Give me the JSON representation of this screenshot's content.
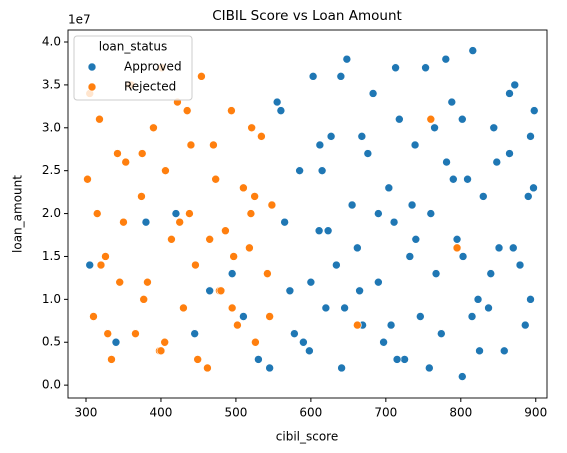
{
  "chart_data": {
    "type": "scatter",
    "title": "CIBIL Score vs Loan Amount",
    "x_label": "cibil_score",
    "y_label": "loan_amount",
    "y_offset_label": "1e7",
    "legend_title": "loan_status",
    "legend_position": "upper left",
    "xlim": [
      276,
      915
    ],
    "ylim": [
      -0.15,
      4.14
    ],
    "xticks": [
      300,
      400,
      500,
      600,
      700,
      800,
      900
    ],
    "yticks": [
      {
        "value": 0,
        "label": "0.0"
      },
      {
        "value": 0.5,
        "label": "0.5"
      },
      {
        "value": 1,
        "label": "1.0"
      },
      {
        "value": 1.5,
        "label": "1.5"
      },
      {
        "value": 2,
        "label": "2.0"
      },
      {
        "value": 2.5,
        "label": "2.5"
      },
      {
        "value": 3,
        "label": "3.0"
      },
      {
        "value": 3.5,
        "label": "3.5"
      },
      {
        "value": 4,
        "label": "4.0"
      }
    ],
    "grid": false,
    "series": [
      {
        "name": "Approved",
        "color": "#1f77b4",
        "x": [
          560,
          572,
          585,
          598,
          603,
          611,
          620,
          627,
          634,
          641,
          648,
          655,
          662,
          669,
          676,
          683,
          690,
          697,
          704,
          711,
          718,
          725,
          732,
          739,
          746,
          753,
          760,
          767,
          774,
          781,
          788,
          795,
          802,
          809,
          816,
          823,
          830,
          837,
          844,
          851,
          858,
          865,
          872,
          879,
          886,
          893,
          898,
          565,
          590,
          615,
          640,
          665,
          690,
          715,
          740,
          765,
          790,
          815,
          840,
          865,
          890,
          578,
          623,
          668,
          713,
          758,
          803,
          848,
          893,
          555,
          600,
          645,
          735,
          780,
          825,
          870,
          612,
          707,
          802,
          897,
          305,
          340,
          420,
          465,
          510,
          530,
          380,
          445,
          495,
          545
        ],
        "values": [
          3.2,
          1.1,
          2.5,
          0.4,
          3.6,
          1.8,
          0.9,
          2.9,
          1.4,
          0.2,
          3.8,
          2.1,
          1.6,
          0.7,
          2.7,
          3.4,
          1.2,
          0.5,
          2.3,
          1.9,
          3.1,
          0.3,
          1.5,
          2.8,
          0.8,
          3.7,
          2.0,
          1.3,
          0.6,
          2.6,
          3.3,
          1.7,
          0.1,
          2.4,
          3.9,
          1.0,
          2.2,
          0.9,
          3.0,
          1.6,
          0.4,
          2.7,
          3.5,
          1.4,
          0.7,
          2.9,
          3.2,
          1.9,
          0.5,
          2.5,
          3.6,
          1.1,
          2.0,
          0.3,
          1.7,
          3.0,
          2.4,
          0.8,
          1.3,
          3.4,
          2.2,
          0.6,
          1.8,
          2.9,
          3.7,
          0.2,
          1.5,
          2.6,
          1.0,
          3.3,
          1.2,
          0.9,
          2.1,
          3.8,
          0.4,
          1.6,
          2.8,
          0.7,
          3.1,
          2.3,
          1.4,
          0.5,
          2.0,
          1.1,
          0.8,
          0.3,
          1.9,
          0.6,
          1.3,
          0.2
        ]
      },
      {
        "name": "Rejected",
        "color": "#ff7f0e",
        "x": [
          302,
          310,
          318,
          326,
          334,
          342,
          350,
          358,
          366,
          374,
          382,
          390,
          398,
          406,
          414,
          422,
          430,
          438,
          446,
          454,
          462,
          470,
          478,
          486,
          494,
          502,
          510,
          518,
          526,
          534,
          542,
          548,
          305,
          329,
          353,
          377,
          401,
          425,
          449,
          473,
          497,
          521,
          545,
          315,
          345,
          375,
          405,
          435,
          465,
          495,
          525,
          320,
          360,
          400,
          440,
          480,
          520,
          662,
          760,
          795
        ],
        "values": [
          2.4,
          0.8,
          3.1,
          1.5,
          0.3,
          2.7,
          1.9,
          3.5,
          0.6,
          2.2,
          1.2,
          3.0,
          0.4,
          2.5,
          1.7,
          3.3,
          0.9,
          2.0,
          1.4,
          3.6,
          0.2,
          2.8,
          1.1,
          1.8,
          3.2,
          0.7,
          2.3,
          1.6,
          0.5,
          2.9,
          1.3,
          2.1,
          3.4,
          0.6,
          2.6,
          1.0,
          3.7,
          1.9,
          0.3,
          2.4,
          1.5,
          3.0,
          0.8,
          2.0,
          1.2,
          2.7,
          0.5,
          3.2,
          1.7,
          0.9,
          2.2,
          1.4,
          3.5,
          0.4,
          2.8,
          1.1,
          2.0,
          0.7,
          3.1,
          1.6
        ]
      }
    ]
  }
}
